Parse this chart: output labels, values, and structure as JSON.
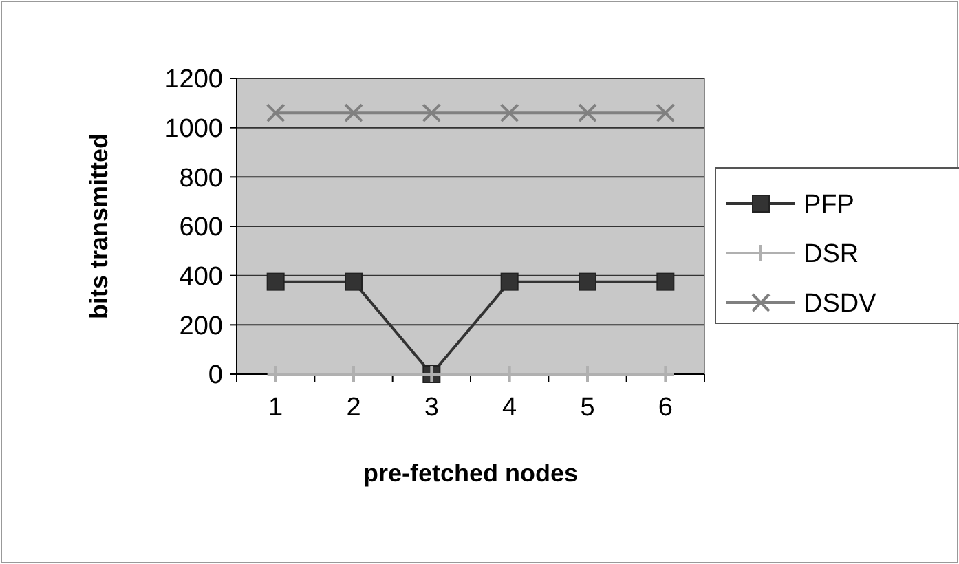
{
  "chart_data": {
    "type": "line",
    "xlabel": "pre-fetched nodes",
    "ylabel": "bits transmitted",
    "categories": [
      "1",
      "2",
      "3",
      "4",
      "5",
      "6"
    ],
    "series": [
      {
        "name": "PFP",
        "color": "#333333",
        "marker": "square",
        "values": [
          375,
          375,
          0,
          375,
          375,
          375
        ]
      },
      {
        "name": "DSR",
        "color": "#b0b0b0",
        "marker": "plus",
        "values": [
          0,
          0,
          0,
          0,
          0,
          0
        ]
      },
      {
        "name": "DSDV",
        "color": "#808080",
        "marker": "cross",
        "values": [
          1060,
          1060,
          1060,
          1060,
          1060,
          1060
        ]
      }
    ],
    "ylim": [
      0,
      1200
    ],
    "yticks": [
      0,
      200,
      400,
      600,
      800,
      1000,
      1200
    ],
    "grid": "y",
    "legend": "right"
  }
}
